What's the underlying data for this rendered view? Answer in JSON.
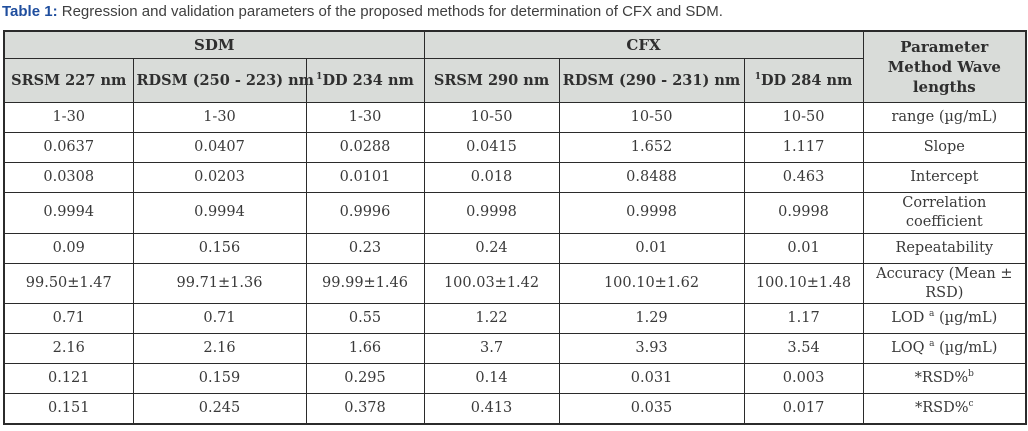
{
  "caption": {
    "prefix": "Table 1:",
    "text": " Regression and validation parameters of the proposed methods for determination of CFX and SDM."
  },
  "colors": {
    "caption_accent": "#1f4e9e",
    "caption_text": "#3f3f3f",
    "header_background": "#d9dcd9",
    "table_border": "#2b2b2b",
    "cell_text": "#3a3a3a"
  },
  "table": {
    "groups": {
      "sdm": "SDM",
      "cfx": "CFX"
    },
    "param_header": "Parameter Method Wave lengths",
    "columns": [
      [
        {
          "t": "SRSM 227 nm"
        }
      ],
      [
        {
          "t": "RDSM (250 - 223) nm"
        }
      ],
      [
        {
          "t": "1",
          "sup": true
        },
        {
          "t": "DD 234 nm"
        }
      ],
      [
        {
          "t": "SRSM 290 nm"
        }
      ],
      [
        {
          "t": "RDSM (290 - 231) nm"
        }
      ],
      [
        {
          "t": "1",
          "sup": true
        },
        {
          "t": "DD 284 nm"
        }
      ]
    ],
    "rows": [
      {
        "values": [
          "1-30",
          "1-30",
          "1-30",
          "10-50",
          "10-50",
          "10-50"
        ],
        "label": [
          {
            "t": "range (µg/mL)"
          }
        ]
      },
      {
        "values": [
          "0.0637",
          "0.0407",
          "0.0288",
          "0.0415",
          "1.652",
          "1.117"
        ],
        "label": [
          {
            "t": "Slope"
          }
        ]
      },
      {
        "values": [
          "0.0308",
          "0.0203",
          "0.0101",
          "0.018",
          "0.8488",
          "0.463"
        ],
        "label": [
          {
            "t": "Intercept"
          }
        ]
      },
      {
        "values": [
          "0.9994",
          "0.9994",
          "0.9996",
          "0.9998",
          "0.9998",
          "0.9998"
        ],
        "label": [
          {
            "t": "Correlation coefficient"
          }
        ]
      },
      {
        "values": [
          "0.09",
          "0.156",
          "0.23",
          "0.24",
          "0.01",
          "0.01"
        ],
        "label": [
          {
            "t": "Repeatability"
          }
        ]
      },
      {
        "values": [
          "99.50±1.47",
          "99.71±1.36",
          "99.99±1.46",
          "100.03±1.42",
          "100.10±1.62",
          "100.10±1.48"
        ],
        "label": [
          {
            "t": "Accuracy (Mean ± RSD)"
          }
        ]
      },
      {
        "values": [
          "0.71",
          "0.71",
          "0.55",
          "1.22",
          "1.29",
          "1.17"
        ],
        "label": [
          {
            "t": "LOD "
          },
          {
            "t": "a",
            "sup": true
          },
          {
            "t": " (µg/mL)"
          }
        ]
      },
      {
        "values": [
          "2.16",
          "2.16",
          "1.66",
          "3.7",
          "3.93",
          "3.54"
        ],
        "label": [
          {
            "t": "LOQ "
          },
          {
            "t": "a",
            "sup": true
          },
          {
            "t": " (µg/mL)"
          }
        ]
      },
      {
        "values": [
          "0.121",
          "0.159",
          "0.295",
          "0.14",
          "0.031",
          "0.003"
        ],
        "label": [
          {
            "t": "*RSD%"
          },
          {
            "t": "b",
            "sup": true
          }
        ]
      },
      {
        "values": [
          "0.151",
          "0.245",
          "0.378",
          "0.413",
          "0.035",
          "0.017"
        ],
        "label": [
          {
            "t": "*RSD%"
          },
          {
            "t": "c",
            "sup": true
          }
        ]
      }
    ]
  }
}
